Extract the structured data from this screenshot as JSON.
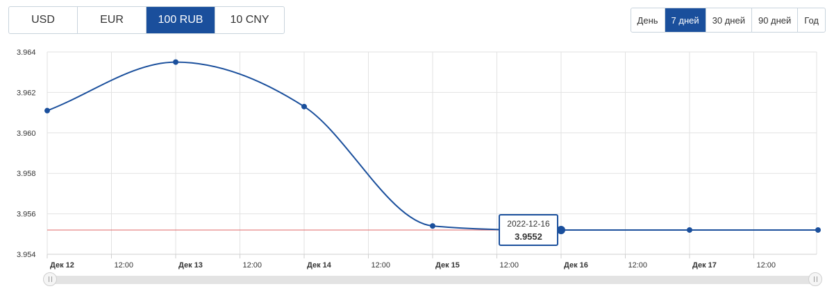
{
  "currency_tabs": [
    {
      "label": "USD",
      "active": false
    },
    {
      "label": "EUR",
      "active": false
    },
    {
      "label": "100 RUB",
      "active": true
    },
    {
      "label": "10 CNY",
      "active": false
    }
  ],
  "period_tabs": [
    {
      "label": "День",
      "active": false
    },
    {
      "label": "7 дней",
      "active": true
    },
    {
      "label": "30 дней",
      "active": false
    },
    {
      "label": "90 дней",
      "active": false
    },
    {
      "label": "Год",
      "active": false
    }
  ],
  "colors": {
    "accent": "#1a4f9c",
    "line": "#1a4f9c",
    "reference_line": "#e06666",
    "grid": "#e2e2e2"
  },
  "chart_data": {
    "type": "line",
    "title": "",
    "xlabel": "",
    "ylabel": "",
    "grid": true,
    "ylim": [
      3.954,
      3.964
    ],
    "y_ticks": [
      "3.954",
      "3.956",
      "3.958",
      "3.960",
      "3.962",
      "3.964"
    ],
    "x_ticks": [
      {
        "label": "Дек 12",
        "bold": true
      },
      {
        "label": "12:00",
        "bold": false
      },
      {
        "label": "Дек 13",
        "bold": true
      },
      {
        "label": "12:00",
        "bold": false
      },
      {
        "label": "Дек 14",
        "bold": true
      },
      {
        "label": "12:00",
        "bold": false
      },
      {
        "label": "Дек 15",
        "bold": true
      },
      {
        "label": "12:00",
        "bold": false
      },
      {
        "label": "Дек 16",
        "bold": true
      },
      {
        "label": "12:00",
        "bold": false
      },
      {
        "label": "Дек 17",
        "bold": true
      },
      {
        "label": "12:00",
        "bold": false
      }
    ],
    "series": [
      {
        "points": [
          {
            "x": "2022-12-12",
            "y": 3.9611
          },
          {
            "x": "2022-12-13",
            "y": 3.9635
          },
          {
            "x": "2022-12-14",
            "y": 3.9613
          },
          {
            "x": "2022-12-15",
            "y": 3.9554
          },
          {
            "x": "2022-12-16",
            "y": 3.9552
          },
          {
            "x": "2022-12-17",
            "y": 3.9552
          },
          {
            "x": "2022-12-18",
            "y": 3.9552
          }
        ]
      }
    ],
    "reference_line": 3.9552,
    "tooltip": {
      "date": "2022-12-16",
      "value": "3.9552",
      "point_index": 4
    }
  }
}
